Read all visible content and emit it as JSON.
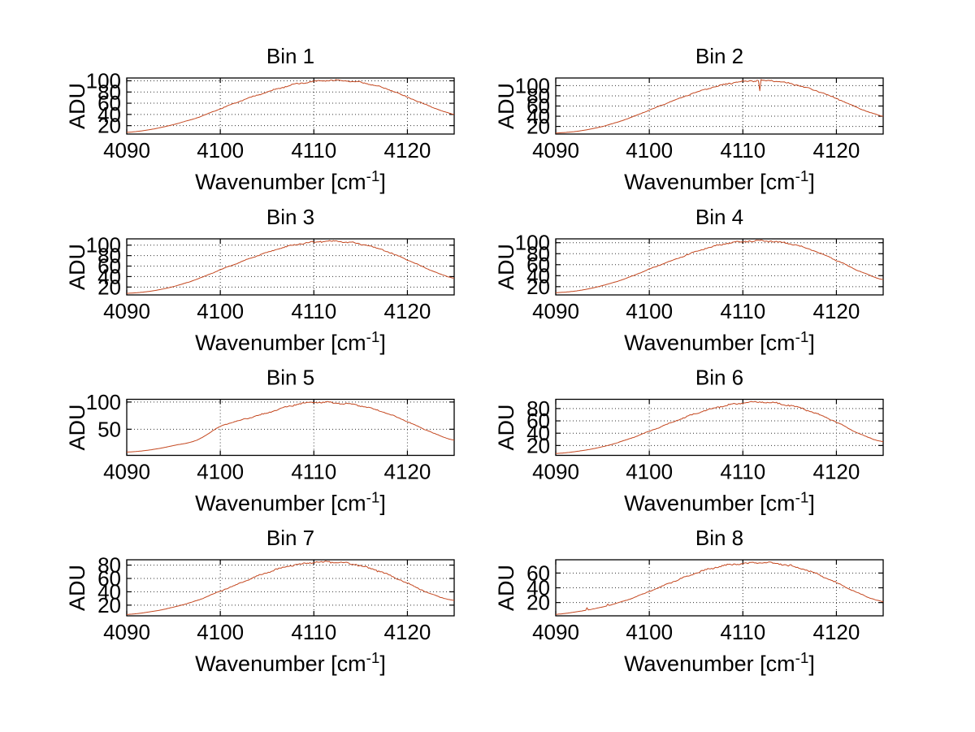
{
  "figure": {
    "background": "#ffffff"
  },
  "chart_data": {
    "type": "line",
    "layout": "4 rows x 2 cols subplots, grid on (dotted), legend none",
    "line_color": "#c4471f",
    "axis_color": "#000000",
    "xlabel_main": "Wavenumber [cm",
    "xlabel_sup": "-1",
    "xlabel_end": "]",
    "ylabel": "ADU",
    "xticks": [
      4090,
      4100,
      4110,
      4120
    ],
    "xtick_labels": [
      "4090",
      "4100",
      "4110",
      "4120"
    ],
    "xlim": [
      4090,
      4125
    ],
    "x": [
      4090,
      4092.5,
      4095,
      4097.5,
      4100,
      4102.5,
      4105,
      4107.5,
      4110,
      4112.5,
      4115,
      4117.5,
      4120,
      4122.5,
      4125
    ],
    "subplots": [
      {
        "title": "Bin 1",
        "yticks": [
          20,
          40,
          60,
          80,
          100
        ],
        "ylim": [
          5,
          105
        ],
        "values": [
          8,
          13,
          22,
          34,
          50,
          66,
          80,
          92,
          99,
          101,
          97,
          87,
          71,
          54,
          40
        ]
      },
      {
        "title": "Bin 2",
        "yticks": [
          20,
          40,
          60,
          80,
          100
        ],
        "ylim": [
          5,
          115
        ],
        "values": [
          7,
          11,
          20,
          34,
          52,
          70,
          87,
          100,
          108,
          110,
          104,
          92,
          75,
          55,
          40
        ],
        "spikes": [
          {
            "x": 4111.8,
            "v": 90
          }
        ]
      },
      {
        "title": "Bin 3",
        "yticks": [
          20,
          40,
          60,
          80,
          100
        ],
        "ylim": [
          5,
          112
        ],
        "values": [
          8,
          12,
          21,
          35,
          53,
          70,
          86,
          99,
          106,
          107,
          102,
          90,
          72,
          52,
          37
        ]
      },
      {
        "title": "Bin 4",
        "yticks": [
          20,
          40,
          60,
          80,
          100
        ],
        "ylim": [
          5,
          107
        ],
        "values": [
          9,
          13,
          22,
          35,
          52,
          68,
          84,
          96,
          102,
          103,
          98,
          86,
          68,
          48,
          33
        ]
      },
      {
        "title": "Bin 5",
        "yticks": [
          50,
          100
        ],
        "ylim": [
          2,
          105
        ],
        "values": [
          8,
          12,
          20,
          30,
          55,
          68,
          80,
          93,
          99,
          98,
          93,
          81,
          64,
          45,
          30
        ]
      },
      {
        "title": "Bin 6",
        "yticks": [
          20,
          40,
          60,
          80
        ],
        "ylim": [
          4,
          95
        ],
        "values": [
          7,
          11,
          18,
          29,
          43,
          58,
          72,
          83,
          89,
          90,
          85,
          74,
          58,
          39,
          26
        ]
      },
      {
        "title": "Bin 7",
        "yticks": [
          20,
          40,
          60,
          80
        ],
        "ylim": [
          4,
          88
        ],
        "values": [
          6,
          10,
          17,
          27,
          41,
          55,
          69,
          79,
          84,
          84,
          79,
          68,
          53,
          37,
          27
        ]
      },
      {
        "title": "Bin 8",
        "yticks": [
          20,
          40,
          60
        ],
        "ylim": [
          2,
          78
        ],
        "values": [
          4,
          8,
          14,
          23,
          35,
          48,
          60,
          69,
          73,
          74,
          70,
          61,
          47,
          32,
          21
        ],
        "spikes": [
          {
            "x": 4093.4,
            "v": 13
          },
          {
            "x": 4095.5,
            "v": 18
          }
        ]
      }
    ]
  }
}
